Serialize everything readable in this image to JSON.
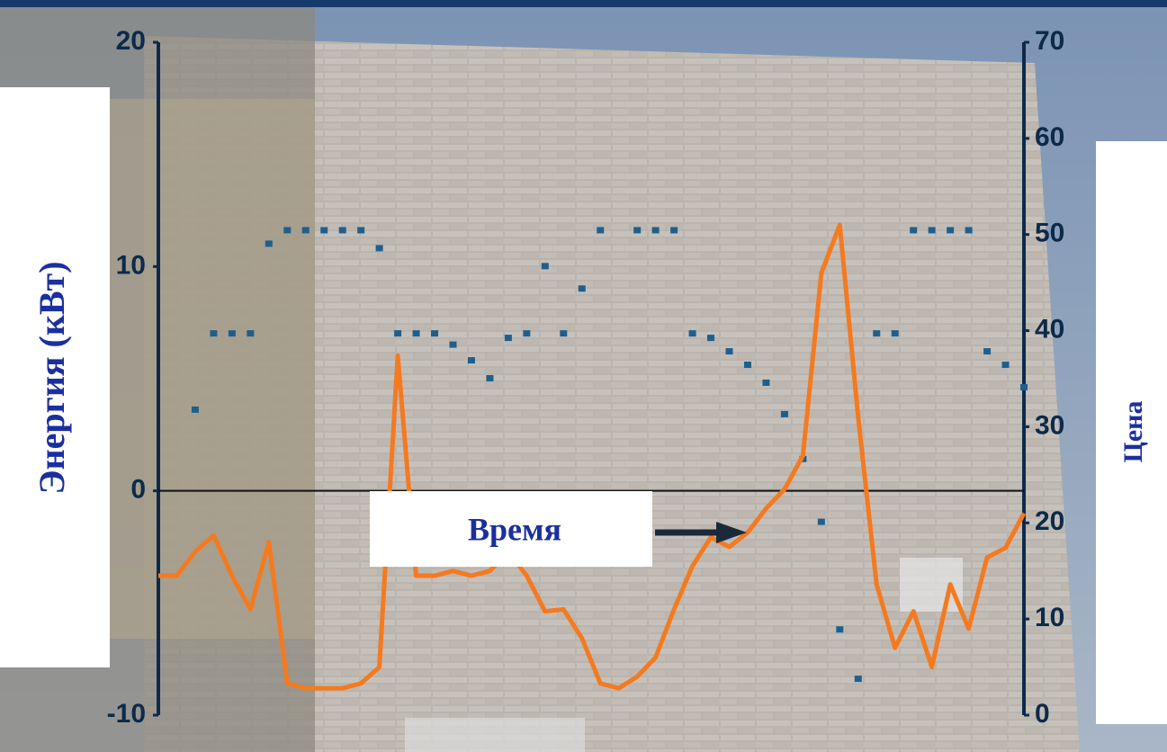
{
  "chart_data": {
    "type": "combo",
    "ylabel": "Энергия (кВт)",
    "y2label": "Цена",
    "xlabel": "Время",
    "categories": [
      null,
      null,
      null,
      null,
      null,
      null,
      null,
      null,
      null,
      null,
      null,
      null,
      null,
      null,
      null,
      null,
      null,
      null,
      null,
      null,
      null,
      null,
      null,
      null,
      null,
      null,
      null,
      null,
      null,
      null,
      null,
      null,
      null,
      null,
      null,
      null,
      null,
      null,
      null,
      null,
      null,
      null,
      null,
      null,
      null,
      null,
      null,
      null
    ],
    "ylim": [
      -10,
      20
    ],
    "yticks": [
      -10,
      0,
      10,
      20
    ],
    "y2lim": [
      0,
      70
    ],
    "y2ticks": [
      0,
      10,
      20,
      30,
      40,
      50,
      60,
      70
    ],
    "series": [
      {
        "type": "scatter",
        "color": "#1f5f8e",
        "values": [
          null,
          null,
          3.6,
          7,
          7,
          7,
          11,
          11.6,
          11.6,
          11.6,
          11.6,
          11.6,
          10.8,
          7,
          7,
          7,
          6.5,
          5.8,
          5.0,
          6.8,
          7,
          10,
          7,
          9,
          11.6,
          null,
          11.6,
          11.6,
          11.6,
          7,
          6.8,
          6.2,
          5.6,
          4.8,
          3.4,
          1.4,
          -1.4,
          -6.2,
          -8.4,
          7,
          7,
          11.6,
          11.6,
          11.6,
          11.6,
          6.2,
          5.6,
          4.6
        ]
      },
      {
        "type": "line",
        "axis": "y2",
        "color": "#f47a20",
        "values": [
          14.5,
          14.5,
          17,
          18.7,
          14.5,
          11,
          18,
          3.3,
          2.8,
          2.8,
          2.8,
          3.3,
          5,
          37.4,
          14.5,
          14.5,
          15,
          14.5,
          15,
          17,
          14.5,
          10.8,
          11,
          8,
          3.3,
          2.8,
          4,
          6,
          11,
          15.5,
          18.5,
          17.5,
          19,
          21.5,
          23.5,
          27,
          46,
          51,
          31,
          13.6,
          7,
          10.8,
          5,
          13.6,
          9,
          16.4,
          17.4,
          21
        ]
      }
    ]
  }
}
